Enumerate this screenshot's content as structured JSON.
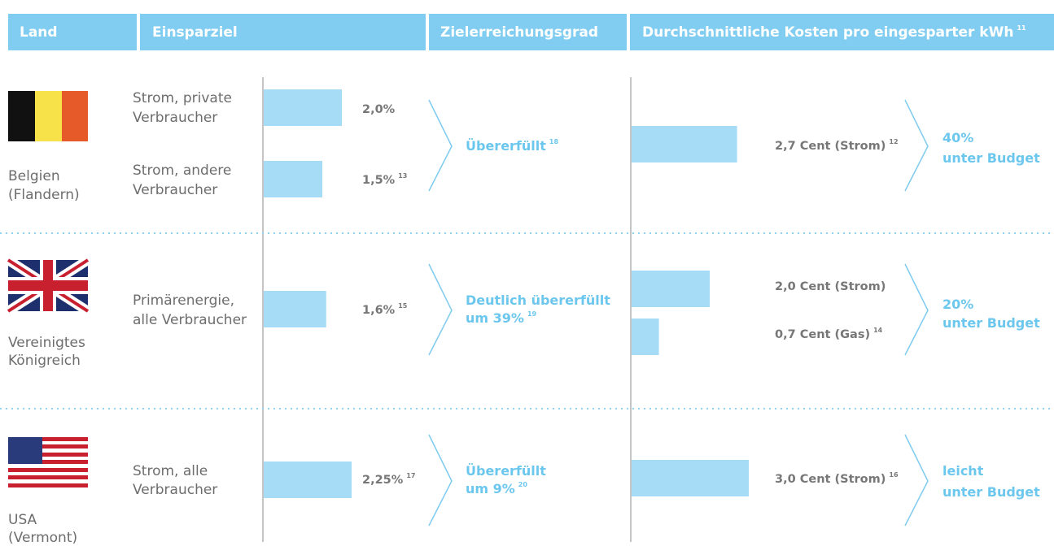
{
  "header": {
    "columns": [
      "Land",
      "Einsparziel",
      "Zielerreichungsgrad",
      "Durchschnittliche Kosten pro eingesparter kWh"
    ],
    "footnote": "11"
  },
  "rows": [
    {
      "country": [
        "Belgien",
        "(Flandern)"
      ],
      "targets": [
        {
          "label": [
            "Strom, private",
            "Verbraucher"
          ],
          "value": 2.0,
          "value_label": "2,0%",
          "footnote": null
        },
        {
          "label": [
            "Strom, andere",
            "Verbraucher"
          ],
          "value": 1.5,
          "value_label": "1,5%",
          "footnote": "13"
        }
      ],
      "achievement": {
        "lines": [
          "Übererfüllt"
        ],
        "footnote": "18"
      },
      "costs": [
        {
          "value": 2.7,
          "value_label": "2,7 Cent (Strom)",
          "footnote": "12"
        }
      ],
      "budget": [
        "40%",
        "unter Budget"
      ]
    },
    {
      "country": [
        "Vereinigtes",
        "Königreich"
      ],
      "targets": [
        {
          "label": [
            "Primärenergie,",
            "alle Verbraucher"
          ],
          "value": 1.6,
          "value_label": "1,6%",
          "footnote": "15"
        }
      ],
      "achievement": {
        "lines": [
          "Deutlich übererfüllt",
          "um 39%"
        ],
        "footnote": "19"
      },
      "costs": [
        {
          "value": 2.0,
          "value_label": "2,0 Cent (Strom)",
          "footnote": null
        },
        {
          "value": 0.7,
          "value_label": "0,7 Cent (Gas)",
          "footnote": "14"
        }
      ],
      "budget": [
        "20%",
        "unter Budget"
      ]
    },
    {
      "country": [
        "USA",
        "(Vermont)"
      ],
      "targets": [
        {
          "label": [
            "Strom, alle",
            "Verbraucher"
          ],
          "value": 2.25,
          "value_label": "2,25%",
          "footnote": "17"
        }
      ],
      "achievement": {
        "lines": [
          "Übererfüllt",
          "um 9%"
        ],
        "footnote": "20"
      },
      "costs": [
        {
          "value": 3.0,
          "value_label": "3,0 Cent (Strom)",
          "footnote": "16"
        }
      ],
      "budget": [
        "leicht",
        "unter Budget"
      ]
    }
  ]
}
